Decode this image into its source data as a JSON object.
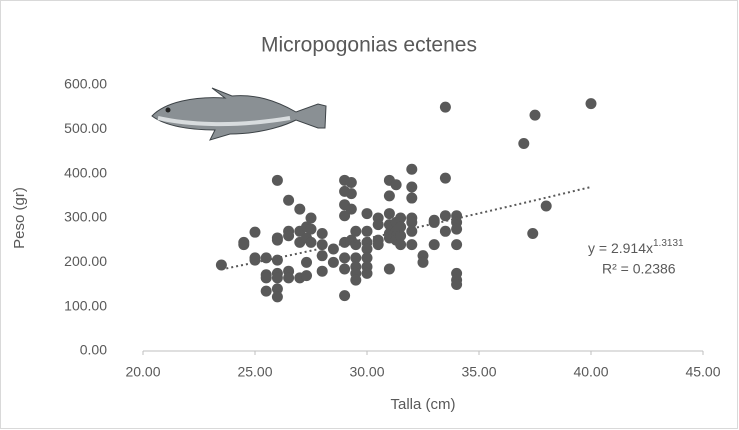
{
  "chart_data": {
    "type": "scatter",
    "title": "Micropogonias ectenes",
    "x_label": "Talla (cm)",
    "y_label": "Peso (gr)",
    "xlim": [
      20,
      45
    ],
    "xticks": [
      {
        "value": 20,
        "label": "20.00"
      },
      {
        "value": 25,
        "label": "25.00"
      },
      {
        "value": 30,
        "label": "30.00"
      },
      {
        "value": 35,
        "label": "35.00"
      },
      {
        "value": 40,
        "label": "40.00"
      },
      {
        "value": 45,
        "label": "45.00"
      }
    ],
    "ylim": [
      0,
      600
    ],
    "yticks": [
      {
        "value": 0,
        "label": "0.00"
      },
      {
        "value": 100,
        "label": "100.00"
      },
      {
        "value": 200,
        "label": "200.00"
      },
      {
        "value": 300,
        "label": "300.00"
      },
      {
        "value": 400,
        "label": "400.00"
      },
      {
        "value": 500,
        "label": "500.00"
      },
      {
        "value": 600,
        "label": "600.00"
      }
    ],
    "grid": false,
    "color": "#595959",
    "x": [
      23.5,
      24.5,
      24.5,
      25,
      25,
      25,
      25.5,
      25.5,
      25.5,
      25.5,
      26,
      26,
      26,
      26,
      26,
      26,
      26,
      26,
      26.5,
      26.5,
      26.5,
      26.5,
      26.5,
      27,
      27,
      27,
      27,
      27.3,
      27.3,
      27.3,
      27.3,
      27.5,
      27.5,
      27.5,
      28,
      28,
      28,
      28,
      28.5,
      28.5,
      29,
      29,
      29,
      29,
      29,
      29,
      29,
      29,
      29.3,
      29.3,
      29.3,
      29.3,
      29.5,
      29.5,
      29.5,
      29.5,
      29.5,
      29.5,
      30,
      30,
      30,
      30,
      30,
      30,
      30,
      30.5,
      30.5,
      30.5,
      30.5,
      31,
      31,
      31,
      31,
      31,
      31,
      31,
      31.3,
      31.3,
      31.3,
      31.3,
      31.5,
      31.5,
      31.5,
      31.5,
      32,
      32,
      32,
      32,
      32,
      32,
      32,
      32.5,
      32.5,
      33,
      33,
      33,
      33.5,
      33.5,
      33.5,
      33.5,
      34,
      34,
      34,
      34,
      34,
      34,
      34,
      37,
      37.4,
      37.5,
      38,
      40
    ],
    "values": [
      194,
      240,
      245,
      210,
      268,
      205,
      172,
      165,
      135,
      210,
      385,
      255,
      250,
      205,
      175,
      165,
      140,
      122,
      340,
      270,
      260,
      180,
      165,
      320,
      270,
      245,
      165,
      280,
      255,
      200,
      170,
      300,
      275,
      245,
      265,
      240,
      215,
      180,
      230,
      200,
      385,
      360,
      330,
      305,
      245,
      210,
      185,
      125,
      380,
      355,
      320,
      250,
      270,
      240,
      210,
      190,
      175,
      160,
      310,
      270,
      245,
      230,
      210,
      190,
      175,
      300,
      285,
      250,
      240,
      385,
      350,
      310,
      285,
      265,
      255,
      185,
      375,
      290,
      270,
      250,
      300,
      280,
      260,
      240,
      410,
      370,
      345,
      300,
      290,
      270,
      240,
      215,
      200,
      295,
      290,
      240,
      550,
      390,
      305,
      270,
      305,
      290,
      275,
      240,
      175,
      160,
      150,
      468,
      265,
      532,
      327,
      558
    ],
    "trendline": {
      "equation_label": "y = 2.914x",
      "exponent_label": "1.3131",
      "r2_label": "R² = 0.2386",
      "coefficient": 2.914,
      "exponent": 1.3131,
      "style": "dotted"
    }
  }
}
